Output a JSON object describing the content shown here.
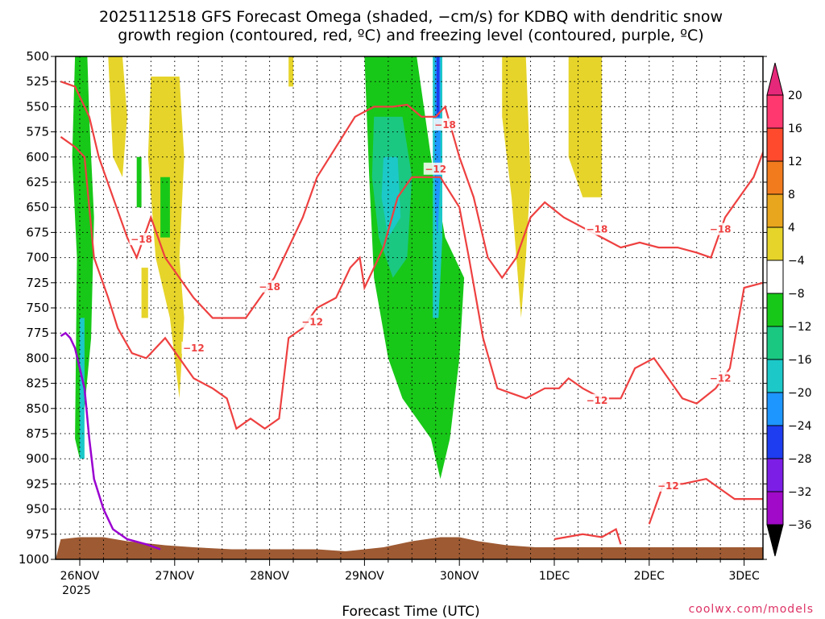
{
  "chart_data": {
    "type": "heatmap",
    "title_lines": [
      "2025112518 GFS Forecast Omega (shaded, −cm/s) for KDBQ with dendritic snow",
      "growth region (contoured, red, ºC) and freezing level (contoured, purple, ºC)"
    ],
    "xlabel": "Forecast Time (UTC)",
    "x_ticks": [
      {
        "label": "26NOV",
        "sub": "2025"
      },
      {
        "label": "27NOV",
        "sub": ""
      },
      {
        "label": "28NOV",
        "sub": ""
      },
      {
        "label": "29NOV",
        "sub": ""
      },
      {
        "label": "30NOV",
        "sub": ""
      },
      {
        "label": "1DEC",
        "sub": ""
      },
      {
        "label": "2DEC",
        "sub": ""
      },
      {
        "label": "3DEC",
        "sub": ""
      }
    ],
    "xlim_days": [
      -0.2,
      7.2
    ],
    "y_ticks": [
      500,
      525,
      550,
      575,
      600,
      625,
      650,
      675,
      700,
      725,
      750,
      775,
      800,
      825,
      850,
      875,
      900,
      925,
      950,
      975,
      1000
    ],
    "ylim": [
      500,
      1000
    ],
    "colorbar": {
      "labels": [
        "20",
        "16",
        "12",
        "8",
        "4",
        "−4",
        "−8",
        "−12",
        "−16",
        "−20",
        "−24",
        "−28",
        "−32",
        "−36"
      ],
      "colors": [
        "#ff3870",
        "#ff4a2e",
        "#f27b1e",
        "#e8a51e",
        "#e6d42a",
        "#ffffff",
        "#18c818",
        "#1ac882",
        "#1cc8c8",
        "#1e96ff",
        "#1e3cf0",
        "#7d1ee6",
        "#a00ac8",
        "#aaaaaa"
      ]
    },
    "omega_regions": [
      {
        "color": "#e6d42a",
        "pts": [
          [
            0.3,
            500
          ],
          [
            0.45,
            500
          ],
          [
            0.5,
            560
          ],
          [
            0.45,
            620
          ],
          [
            0.35,
            600
          ]
        ]
      },
      {
        "color": "#e6d42a",
        "pts": [
          [
            0.75,
            520
          ],
          [
            1.05,
            520
          ],
          [
            1.1,
            600
          ],
          [
            1.05,
            700
          ],
          [
            1.1,
            760
          ],
          [
            1.05,
            840
          ],
          [
            0.95,
            760
          ],
          [
            0.8,
            700
          ],
          [
            0.72,
            600
          ]
        ]
      },
      {
        "color": "#e6d42a",
        "pts": [
          [
            2.2,
            500
          ],
          [
            2.25,
            500
          ],
          [
            2.25,
            530
          ],
          [
            2.2,
            530
          ]
        ]
      },
      {
        "color": "#e6d42a",
        "pts": [
          [
            4.45,
            500
          ],
          [
            4.7,
            500
          ],
          [
            4.75,
            620
          ],
          [
            4.7,
            700
          ],
          [
            4.65,
            760
          ],
          [
            4.55,
            640
          ],
          [
            4.45,
            560
          ]
        ]
      },
      {
        "color": "#e6d42a",
        "pts": [
          [
            5.15,
            500
          ],
          [
            5.5,
            500
          ],
          [
            5.5,
            640
          ],
          [
            5.3,
            640
          ],
          [
            5.15,
            600
          ]
        ]
      },
      {
        "color": "#e6d42a",
        "pts": [
          [
            0.65,
            710
          ],
          [
            0.72,
            710
          ],
          [
            0.72,
            760
          ],
          [
            0.65,
            760
          ]
        ]
      },
      {
        "color": "#18c818",
        "pts": [
          [
            -0.05,
            500
          ],
          [
            0.08,
            500
          ],
          [
            0.1,
            560
          ],
          [
            0.15,
            660
          ],
          [
            0.12,
            780
          ],
          [
            0.05,
            850
          ],
          [
            0.0,
            900
          ],
          [
            -0.05,
            880
          ],
          [
            -0.03,
            700
          ],
          [
            -0.08,
            600
          ]
        ]
      },
      {
        "color": "#18c818",
        "pts": [
          [
            0.6,
            600
          ],
          [
            0.65,
            600
          ],
          [
            0.65,
            650
          ],
          [
            0.6,
            650
          ]
        ]
      },
      {
        "color": "#18c818",
        "pts": [
          [
            0.85,
            620
          ],
          [
            0.95,
            620
          ],
          [
            0.95,
            680
          ],
          [
            0.85,
            680
          ]
        ]
      },
      {
        "color": "#18c818",
        "pts": [
          [
            3.0,
            500
          ],
          [
            3.55,
            500
          ],
          [
            3.7,
            600
          ],
          [
            3.85,
            680
          ],
          [
            4.05,
            720
          ],
          [
            4.0,
            800
          ],
          [
            3.9,
            880
          ],
          [
            3.8,
            920
          ],
          [
            3.7,
            880
          ],
          [
            3.55,
            860
          ],
          [
            3.4,
            840
          ],
          [
            3.25,
            800
          ],
          [
            3.1,
            720
          ],
          [
            3.05,
            620
          ]
        ]
      },
      {
        "color": "#1ac882",
        "pts": [
          [
            3.1,
            560
          ],
          [
            3.4,
            560
          ],
          [
            3.5,
            620
          ],
          [
            3.45,
            700
          ],
          [
            3.3,
            720
          ],
          [
            3.15,
            680
          ],
          [
            3.08,
            620
          ]
        ]
      },
      {
        "color": "#1cc8c8",
        "pts": [
          [
            3.2,
            600
          ],
          [
            3.35,
            600
          ],
          [
            3.38,
            660
          ],
          [
            3.25,
            680
          ],
          [
            3.18,
            640
          ]
        ]
      },
      {
        "color": "#1cc8c8",
        "pts": [
          [
            3.72,
            500
          ],
          [
            3.82,
            500
          ],
          [
            3.82,
            680
          ],
          [
            3.78,
            760
          ],
          [
            3.72,
            760
          ]
        ]
      },
      {
        "color": "#1e96ff",
        "pts": [
          [
            3.74,
            500
          ],
          [
            3.8,
            500
          ],
          [
            3.8,
            620
          ],
          [
            3.77,
            680
          ],
          [
            3.74,
            650
          ]
        ]
      },
      {
        "color": "#1e3cf0",
        "pts": [
          [
            3.76,
            500
          ],
          [
            3.79,
            500
          ],
          [
            3.79,
            560
          ],
          [
            3.76,
            560
          ]
        ]
      },
      {
        "color": "#1cc8c8",
        "pts": [
          [
            0.0,
            760
          ],
          [
            0.05,
            760
          ],
          [
            0.05,
            900
          ],
          [
            0.0,
            900
          ]
        ]
      }
    ],
    "dgz_contours": [
      {
        "label": "−12",
        "pts": [
          [
            -0.2,
            580
          ],
          [
            -0.05,
            590
          ],
          [
            0.05,
            600
          ],
          [
            0.15,
            700
          ],
          [
            0.3,
            740
          ],
          [
            0.4,
            770
          ],
          [
            0.55,
            795
          ],
          [
            0.7,
            800
          ],
          [
            0.8,
            790
          ],
          [
            0.9,
            780
          ],
          [
            1.05,
            800
          ],
          [
            1.2,
            820
          ],
          [
            1.4,
            830
          ],
          [
            1.55,
            840
          ],
          [
            1.65,
            870
          ],
          [
            1.8,
            860
          ],
          [
            1.95,
            870
          ],
          [
            2.1,
            860
          ],
          [
            2.2,
            780
          ],
          [
            2.35,
            770
          ],
          [
            2.5,
            750
          ],
          [
            2.7,
            740
          ],
          [
            2.85,
            710
          ],
          [
            2.95,
            700
          ],
          [
            3.0,
            730
          ],
          [
            3.05,
            720
          ],
          [
            3.2,
            690
          ],
          [
            3.35,
            640
          ],
          [
            3.5,
            620
          ],
          [
            3.65,
            620
          ],
          [
            3.8,
            620
          ],
          [
            4.0,
            650
          ],
          [
            4.1,
            700
          ],
          [
            4.25,
            780
          ],
          [
            4.4,
            830
          ],
          [
            4.7,
            840
          ],
          [
            4.9,
            830
          ],
          [
            5.05,
            830
          ],
          [
            5.15,
            820
          ],
          [
            5.3,
            830
          ],
          [
            5.5,
            840
          ],
          [
            5.7,
            840
          ],
          [
            5.85,
            810
          ],
          [
            6.05,
            800
          ],
          [
            6.2,
            820
          ],
          [
            6.35,
            840
          ],
          [
            6.5,
            845
          ],
          [
            6.7,
            830
          ],
          [
            6.85,
            810
          ],
          [
            7.0,
            730
          ],
          [
            7.2,
            725
          ]
        ]
      },
      {
        "label": "−18",
        "pts": [
          [
            -0.2,
            525
          ],
          [
            -0.05,
            530
          ],
          [
            0.1,
            560
          ],
          [
            0.2,
            600
          ],
          [
            0.35,
            640
          ],
          [
            0.5,
            680
          ],
          [
            0.6,
            700
          ],
          [
            0.75,
            660
          ],
          [
            0.9,
            700
          ],
          [
            1.05,
            720
          ],
          [
            1.2,
            740
          ],
          [
            1.4,
            760
          ],
          [
            1.55,
            760
          ],
          [
            1.75,
            760
          ],
          [
            1.9,
            740
          ],
          [
            2.05,
            720
          ],
          [
            2.2,
            690
          ],
          [
            2.35,
            660
          ],
          [
            2.5,
            620
          ],
          [
            2.7,
            590
          ],
          [
            2.9,
            560
          ],
          [
            3.1,
            550
          ],
          [
            3.3,
            550
          ],
          [
            3.45,
            548
          ],
          [
            3.6,
            560
          ],
          [
            3.75,
            560
          ],
          [
            3.85,
            550
          ],
          [
            4.0,
            600
          ],
          [
            4.15,
            640
          ],
          [
            4.3,
            700
          ],
          [
            4.45,
            720
          ],
          [
            4.6,
            700
          ],
          [
            4.75,
            660
          ],
          [
            4.9,
            645
          ],
          [
            5.1,
            660
          ],
          [
            5.3,
            670
          ],
          [
            5.5,
            680
          ],
          [
            5.7,
            690
          ],
          [
            5.9,
            685
          ],
          [
            6.1,
            690
          ],
          [
            6.3,
            690
          ],
          [
            6.5,
            695
          ],
          [
            6.65,
            700
          ],
          [
            6.8,
            660
          ],
          [
            6.95,
            640
          ],
          [
            7.1,
            620
          ],
          [
            7.2,
            595
          ]
        ]
      },
      {
        "label": "−12",
        "pts": [
          [
            5.0,
            980
          ],
          [
            5.3,
            975
          ],
          [
            5.5,
            978
          ],
          [
            5.65,
            970
          ],
          [
            5.7,
            985
          ]
        ]
      },
      {
        "label": "−12",
        "pts": [
          [
            6.0,
            965
          ],
          [
            6.15,
            925
          ],
          [
            6.35,
            925
          ],
          [
            6.6,
            920
          ],
          [
            6.75,
            930
          ],
          [
            6.9,
            940
          ],
          [
            7.2,
            940
          ]
        ]
      }
    ],
    "dgz_labels": [
      {
        "text": "−18",
        "x": 0.65,
        "y": 682
      },
      {
        "text": "−18",
        "x": 2.0,
        "y": 729
      },
      {
        "text": "−18",
        "x": 3.85,
        "y": 568
      },
      {
        "text": "−12",
        "x": 3.75,
        "y": 612
      },
      {
        "text": "−18",
        "x": 5.45,
        "y": 672
      },
      {
        "text": "−18",
        "x": 6.75,
        "y": 672
      },
      {
        "text": "−12",
        "x": 1.2,
        "y": 790
      },
      {
        "text": "−12",
        "x": 2.45,
        "y": 764
      },
      {
        "text": "−12",
        "x": 5.45,
        "y": 842
      },
      {
        "text": "−12",
        "x": 6.75,
        "y": 820
      },
      {
        "text": "−12",
        "x": 6.2,
        "y": 927
      }
    ],
    "freezing_level": [
      [
        -0.2,
        778
      ],
      [
        -0.15,
        775
      ],
      [
        -0.1,
        780
      ],
      [
        -0.05,
        790
      ],
      [
        0.05,
        830
      ],
      [
        0.1,
        880
      ],
      [
        0.15,
        920
      ],
      [
        0.25,
        950
      ],
      [
        0.35,
        970
      ],
      [
        0.5,
        980
      ],
      [
        0.7,
        985
      ],
      [
        0.85,
        990
      ]
    ],
    "terrain_top": [
      [
        -0.2,
        980
      ],
      [
        0.0,
        978
      ],
      [
        0.25,
        978
      ],
      [
        0.5,
        982
      ],
      [
        0.9,
        986
      ],
      [
        1.2,
        988
      ],
      [
        1.6,
        990
      ],
      [
        2.0,
        990
      ],
      [
        2.5,
        990
      ],
      [
        2.8,
        992
      ],
      [
        3.2,
        988
      ],
      [
        3.5,
        982
      ],
      [
        3.8,
        978
      ],
      [
        4.0,
        978
      ],
      [
        4.2,
        982
      ],
      [
        4.5,
        986
      ],
      [
        4.8,
        988
      ],
      [
        5.2,
        988
      ],
      [
        5.6,
        988
      ],
      [
        6.0,
        988
      ],
      [
        6.4,
        988
      ],
      [
        6.8,
        988
      ],
      [
        7.2,
        988
      ]
    ],
    "terrain_color": "#9e5a33",
    "dgz_color": "#ee4040",
    "freezing_color": "#9a00d0",
    "grid": true
  },
  "footer": {
    "credit": "coolwx.com/models",
    "credit_color": "#dd3366"
  }
}
